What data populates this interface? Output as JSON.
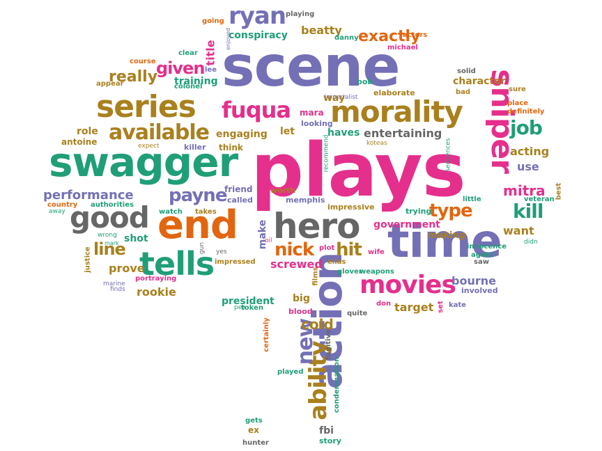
{
  "palette": {
    "purple": "#7470b6",
    "pink": "#e52f8c",
    "green": "#1f9e78",
    "orange": "#e2660f",
    "gold": "#a9801e",
    "gray": "#666666"
  },
  "words": [
    "plays",
    "scene",
    "swagger",
    "end",
    "time",
    "hero",
    "sniper",
    "action",
    "series",
    "morality",
    "tells",
    "movies",
    "good",
    "fuqua",
    "ryan",
    "available",
    "given",
    "ability",
    "new",
    "payne",
    "performance",
    "really",
    "kill",
    "job",
    "nick",
    "hit",
    "type",
    "line",
    "exactly",
    "mitra",
    "screwed",
    "cold",
    "prove",
    "rookie",
    "target",
    "bourne",
    "want",
    "use",
    "acting",
    "shot",
    "entertaining",
    "haves",
    "government",
    "make",
    "character",
    "training",
    "title",
    "beatty",
    "conspiracy",
    "engaging",
    "role",
    "let",
    "way",
    "mara",
    "looking",
    "killer",
    "think",
    "friend",
    "called",
    "memphis",
    "worth",
    "impressive",
    "trying",
    "making",
    "innocence",
    "agent",
    "saw",
    "didn",
    "veteran",
    "best",
    "little",
    "sequences",
    "recommend",
    "koteas",
    "elias",
    "glover",
    "weapons",
    "wife",
    "plot",
    "oil",
    "yes",
    "impressed",
    "gun",
    "portraying",
    "finds",
    "marine",
    "wrong",
    "mark",
    "justice",
    "watch",
    "takes",
    "country",
    "authorities",
    "away",
    "antoine",
    "expect",
    "colonel",
    "appear",
    "course",
    "clear",
    "lee",
    "enjoyed",
    "going",
    "playing",
    "danny",
    "actors",
    "michael",
    "imperialist",
    "bob",
    "elaborate",
    "solid",
    "bad",
    "sure",
    "place",
    "definitely",
    "president",
    "token",
    "pea",
    "blood",
    "big",
    "films",
    "don",
    "quite",
    "set",
    "kate",
    "involved",
    "certainly",
    "played",
    "condemnation",
    "fugitive",
    "gets",
    "ex",
    "hunter",
    "fbi",
    "story"
  ]
}
